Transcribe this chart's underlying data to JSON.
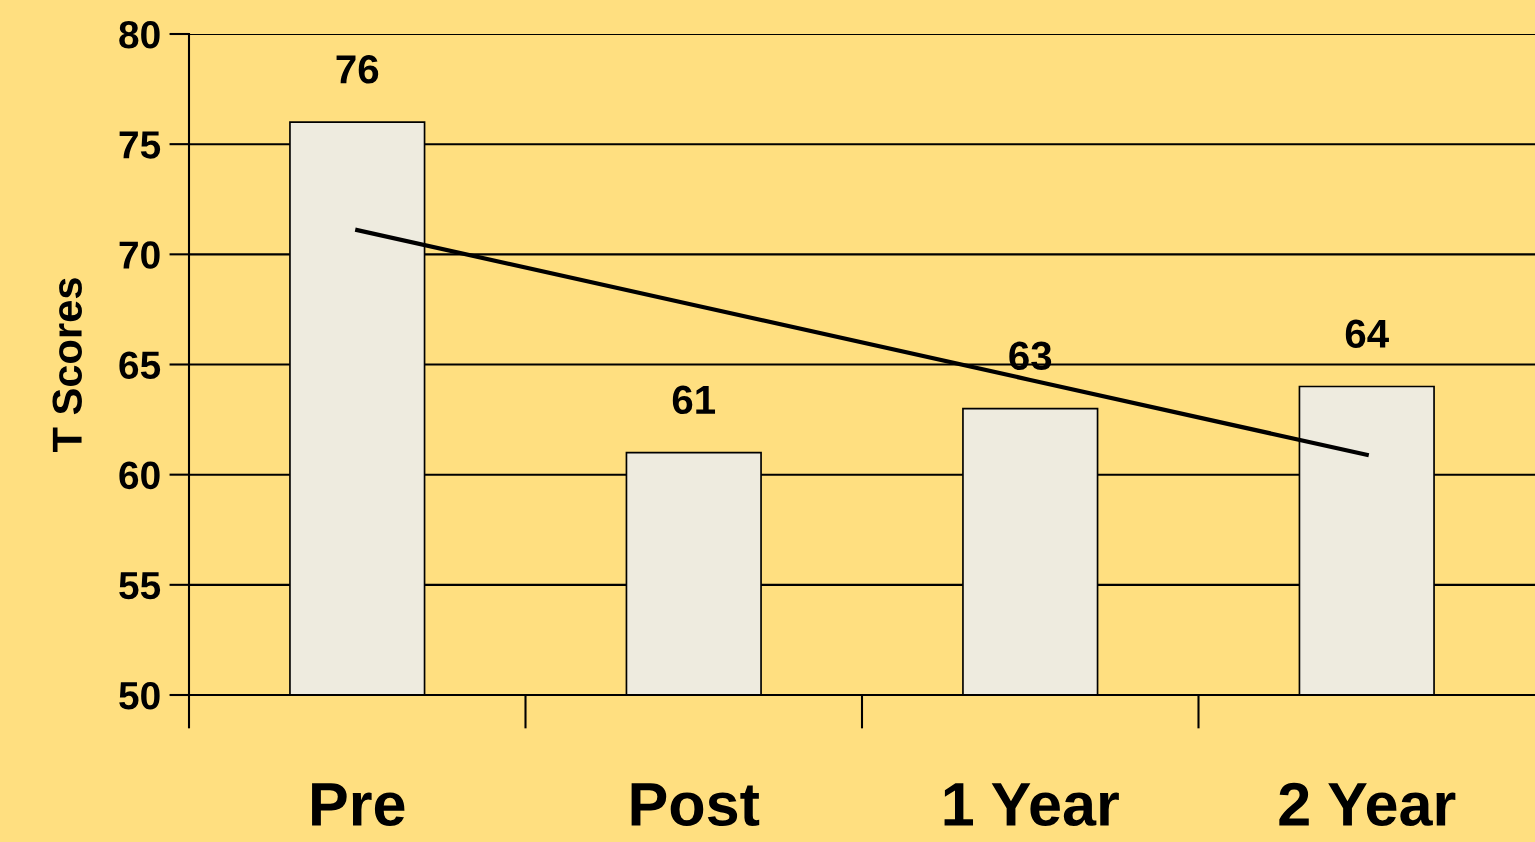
{
  "chart_data": {
    "type": "bar",
    "ylabel": "T Scores",
    "categories": [
      "Pre",
      "Post",
      "1 Year",
      "2 Year"
    ],
    "series": [
      {
        "color": "#eeebdf",
        "values": [
          76,
          61,
          63,
          64
        ],
        "value_labels": [
          "76",
          "61",
          "63",
          "64"
        ]
      },
      {
        "type": "line",
        "color": "#000000",
        "values": [
          71.1,
          67.7,
          64.3,
          60.9
        ]
      }
    ],
    "ylim": [
      50,
      80
    ],
    "yticks": [
      50,
      55,
      60,
      65,
      70,
      75,
      80
    ],
    "grid": "y",
    "legend": false,
    "marker": "none",
    "line_style": "solid"
  }
}
